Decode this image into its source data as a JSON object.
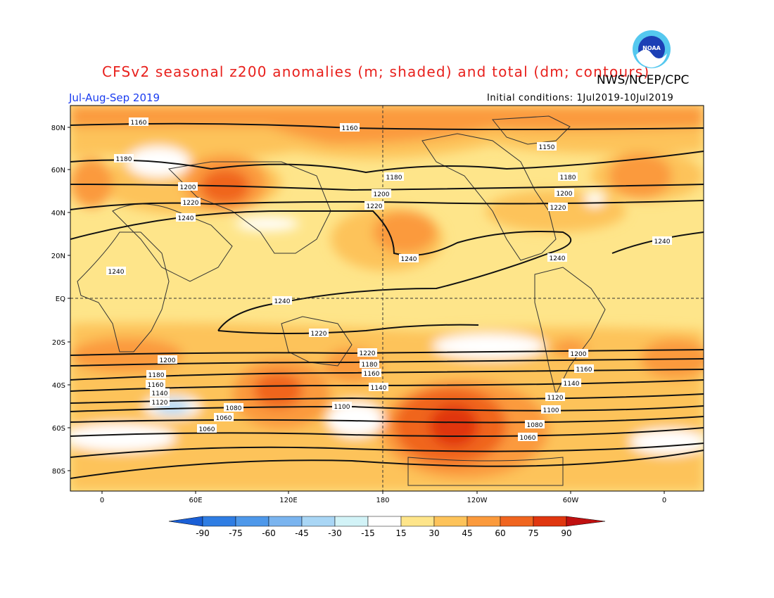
{
  "title": "CFSv2 seasonal z200 anomalies (m; shaded) and total (dm; contours)",
  "agency": "NWS/NCEP/CPC",
  "logo_text": "NOAA",
  "season": "Jul-Aug-Sep 2019",
  "initial_conditions": "Initial conditions: 1Jul2019-10Jul2019",
  "lat_labels": [
    "80N",
    "60N",
    "40N",
    "20N",
    "EQ",
    "20S",
    "40S",
    "60S",
    "80S"
  ],
  "lon_labels": [
    "0",
    "60E",
    "120E",
    "180",
    "120W",
    "60W",
    "0"
  ],
  "colorbar": {
    "labels": [
      "-90",
      "-75",
      "-60",
      "-45",
      "-30",
      "-15",
      "15",
      "30",
      "45",
      "60",
      "75",
      "90"
    ],
    "colors": [
      "#1a5fd6",
      "#2f7de3",
      "#4e98ea",
      "#7ab4ef",
      "#a9d6f5",
      "#d2f3f7",
      "#ffffff",
      "#fee58a",
      "#fdc35a",
      "#fb9a3c",
      "#f0651f",
      "#e0360f",
      "#c01010"
    ]
  },
  "contour_labels": [
    "1160",
    "1160",
    "1150",
    "1180",
    "1180",
    "1180",
    "1200",
    "1200",
    "1200",
    "1220",
    "1220",
    "1220",
    "1240",
    "1240",
    "1240",
    "1240",
    "1240",
    "1240",
    "1220",
    "1220",
    "1200",
    "1200",
    "1180",
    "1180",
    "1160",
    "1160",
    "1160",
    "1140",
    "1140",
    "1140",
    "1120",
    "1120",
    "1100",
    "1100",
    "1080",
    "1080",
    "1060",
    "1060",
    "1060"
  ],
  "map_colors": {
    "land_outline": "#333333",
    "contour": "#111111"
  }
}
